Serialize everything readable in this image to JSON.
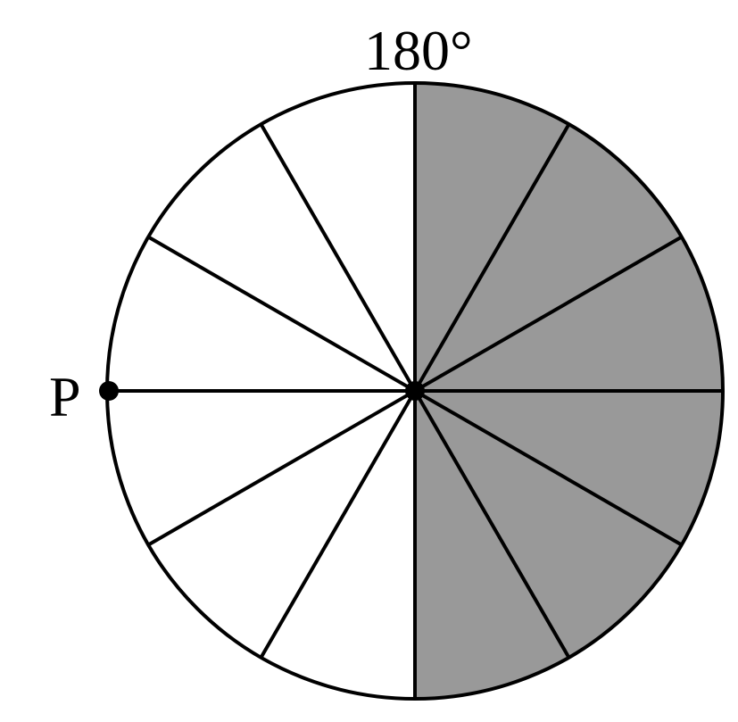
{
  "top_label": "180°",
  "point_label": "P",
  "sectors": 12,
  "shaded_sectors": 6,
  "shade_color": "#999999"
}
